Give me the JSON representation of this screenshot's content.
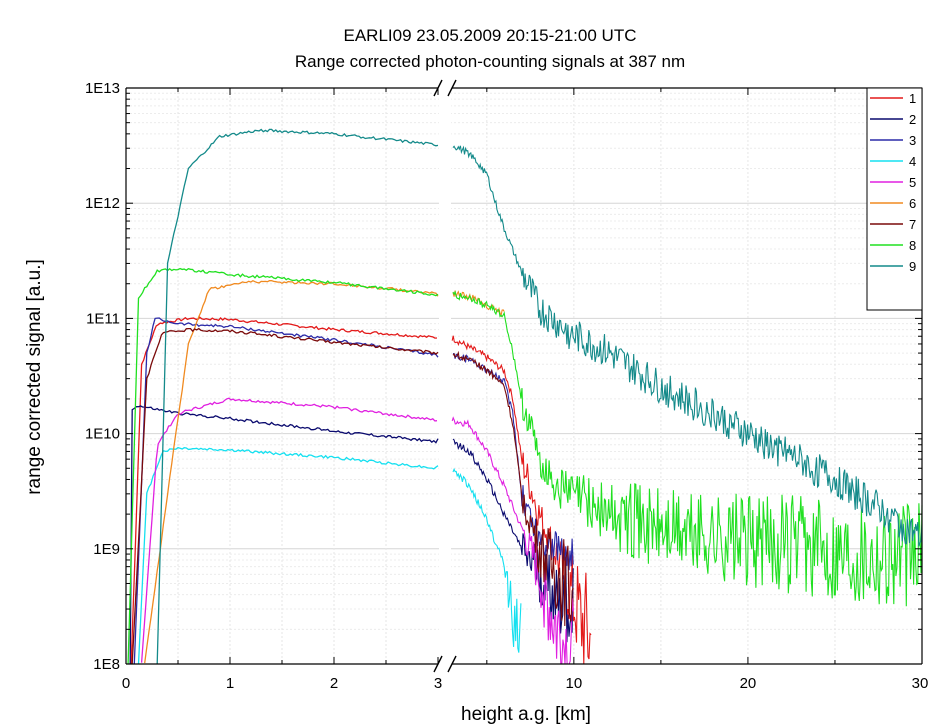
{
  "chart_data": {
    "type": "line",
    "title": "EARLI09 23.05.2009 20:15-21:00 UTC",
    "subtitle": "Range corrected photon-counting signals at 387 nm",
    "xlabel": "height a.g. [km]",
    "ylabel": "range corrected signal [a.u.]",
    "y_scale": "log",
    "ylim": [
      100000000.0,
      10000000000000.0
    ],
    "y_ticks": [
      {
        "value": 100000000.0,
        "label": "1E8"
      },
      {
        "value": 1000000000.0,
        "label": "1E9"
      },
      {
        "value": 10000000000.0,
        "label": "1E10"
      },
      {
        "value": 100000000000.0,
        "label": "1E11"
      },
      {
        "value": 1000000000000.0,
        "label": "1E12"
      },
      {
        "value": 10000000000000.0,
        "label": "1E13"
      }
    ],
    "x_axis_break": {
      "left_segment": [
        0,
        3
      ],
      "right_segment": [
        3,
        30
      ]
    },
    "x_ticks_left": [
      {
        "value": 0,
        "label": "0"
      },
      {
        "value": 1,
        "label": "1"
      },
      {
        "value": 2,
        "label": "2"
      },
      {
        "value": 3,
        "label": "3"
      }
    ],
    "x_ticks_right": [
      {
        "value": 10,
        "label": "10"
      },
      {
        "value": 20,
        "label": "20"
      },
      {
        "value": 30,
        "label": "30"
      }
    ],
    "grid": true,
    "legend_position": "top-right",
    "series": [
      {
        "name": "1",
        "color": "#e31a1a",
        "noise_floor": 120000000.0,
        "points": [
          [
            0.05,
            100000000.0
          ],
          [
            0.15,
            40000000000.0
          ],
          [
            0.3,
            90000000000.0
          ],
          [
            0.6,
            100000000000.0
          ],
          [
            1,
            98000000000.0
          ],
          [
            2,
            80000000000.0
          ],
          [
            3,
            68000000000.0
          ],
          [
            4,
            56000000000.0
          ],
          [
            5,
            46000000000.0
          ],
          [
            6,
            35000000000.0
          ],
          [
            6.5,
            20000000000.0
          ],
          [
            7,
            6000000000.0
          ],
          [
            8,
            2000000000.0
          ],
          [
            9,
            900000000.0
          ],
          [
            10,
            350000000.0
          ],
          [
            11,
            150000000.0
          ]
        ]
      },
      {
        "name": "2",
        "color": "#0a0a6e",
        "noise_floor": 100000000.0,
        "points": [
          [
            0.04,
            100000000.0
          ],
          [
            0.06,
            16000000000.0
          ],
          [
            0.1,
            17500000000.0
          ],
          [
            0.5,
            15000000000.0
          ],
          [
            1,
            13500000000.0
          ],
          [
            2,
            10500000000.0
          ],
          [
            3,
            8500000000.0
          ],
          [
            4,
            7000000000.0
          ],
          [
            5,
            4000000000.0
          ],
          [
            6,
            2000000000.0
          ],
          [
            7,
            1000000000.0
          ],
          [
            8,
            600000000.0
          ],
          [
            9,
            400000000.0
          ],
          [
            10,
            300000000.0
          ]
        ]
      },
      {
        "name": "3",
        "color": "#2b2ba8",
        "noise_floor": 100000000.0,
        "points": [
          [
            0.08,
            100000000.0
          ],
          [
            0.2,
            50000000000.0
          ],
          [
            0.28,
            100000000000.0
          ],
          [
            0.5,
            90000000000.0
          ],
          [
            1,
            85000000000.0
          ],
          [
            2,
            65000000000.0
          ],
          [
            3,
            48000000000.0
          ],
          [
            4,
            44000000000.0
          ],
          [
            5,
            36000000000.0
          ],
          [
            6,
            28000000000.0
          ],
          [
            6.5,
            15000000000.0
          ],
          [
            7,
            3000000000.0
          ],
          [
            8,
            1200000000.0
          ],
          [
            9,
            1000000000.0
          ],
          [
            10,
            900000000.0
          ]
        ]
      },
      {
        "name": "4",
        "color": "#15e0f0",
        "noise_floor": 100000000.0,
        "points": [
          [
            0.12,
            100000000.0
          ],
          [
            0.2,
            3000000000.0
          ],
          [
            0.35,
            7000000000.0
          ],
          [
            0.5,
            7500000000.0
          ],
          [
            1,
            7200000000.0
          ],
          [
            2,
            6200000000.0
          ],
          [
            3,
            5000000000.0
          ],
          [
            4,
            3500000000.0
          ],
          [
            5,
            1800000000.0
          ],
          [
            6,
            700000000.0
          ],
          [
            6.5,
            300000000.0
          ],
          [
            7,
            100000000.0
          ]
        ]
      },
      {
        "name": "5",
        "color": "#e020e0",
        "noise_floor": 100000000.0,
        "points": [
          [
            0.15,
            100000000.0
          ],
          [
            0.3,
            8000000000.0
          ],
          [
            0.5,
            15000000000.0
          ],
          [
            1,
            20000000000.0
          ],
          [
            2,
            17000000000.0
          ],
          [
            3,
            13000000000.0
          ],
          [
            4,
            12000000000.0
          ],
          [
            5,
            7000000000.0
          ],
          [
            6,
            3500000000.0
          ],
          [
            7,
            1500000000.0
          ],
          [
            8,
            600000000.0
          ],
          [
            9,
            200000000.0
          ],
          [
            10,
            100000000.0
          ]
        ]
      },
      {
        "name": "6",
        "color": "#f08a20",
        "noise_floor": 100000000.0,
        "points": [
          [
            0.18,
            100000000.0
          ],
          [
            0.4,
            3000000000.0
          ],
          [
            0.6,
            60000000000.0
          ],
          [
            0.8,
            180000000000.0
          ],
          [
            1.2,
            210000000000.0
          ],
          [
            2,
            200000000000.0
          ],
          [
            3,
            165000000000.0
          ],
          [
            4,
            155000000000.0
          ],
          [
            5,
            130000000000.0
          ],
          [
            6,
            110000000000.0
          ]
        ]
      },
      {
        "name": "7",
        "color": "#7a0a0a",
        "noise_floor": 150000000.0,
        "points": [
          [
            0.06,
            100000000.0
          ],
          [
            0.2,
            30000000000.0
          ],
          [
            0.35,
            75000000000.0
          ],
          [
            0.6,
            80000000000.0
          ],
          [
            1,
            78000000000.0
          ],
          [
            2,
            62000000000.0
          ],
          [
            3,
            50000000000.0
          ],
          [
            4,
            43000000000.0
          ],
          [
            5,
            36000000000.0
          ],
          [
            6,
            26000000000.0
          ],
          [
            6.5,
            12000000000.0
          ],
          [
            7,
            3000000000.0
          ],
          [
            8,
            1000000000.0
          ],
          [
            9,
            600000000.0
          ],
          [
            10,
            400000000.0
          ]
        ]
      },
      {
        "name": "8",
        "color": "#20e020",
        "noise_floor": 400000000.0,
        "points": [
          [
            0.02,
            100000000.0
          ],
          [
            0.12,
            150000000000.0
          ],
          [
            0.3,
            260000000000.0
          ],
          [
            0.5,
            270000000000.0
          ],
          [
            1,
            240000000000.0
          ],
          [
            2,
            205000000000.0
          ],
          [
            3,
            160000000000.0
          ],
          [
            4,
            150000000000.0
          ],
          [
            5,
            130000000000.0
          ],
          [
            6,
            105000000000.0
          ],
          [
            6.5,
            50000000000.0
          ],
          [
            7,
            20000000000.0
          ],
          [
            8,
            6000000000.0
          ],
          [
            9,
            3500000000.0
          ],
          [
            10,
            3000000000.0
          ],
          [
            11,
            2500000000.0
          ],
          [
            12,
            2000000000.0
          ],
          [
            15,
            1500000000.0
          ],
          [
            20,
            1200000000.0
          ],
          [
            25,
            1000000000.0
          ],
          [
            30,
            900000000.0
          ]
        ]
      },
      {
        "name": "9",
        "color": "#148a8a",
        "noise_floor": 100000000.0,
        "points": [
          [
            0.3,
            100000000.0
          ],
          [
            0.4,
            300000000000.0
          ],
          [
            0.6,
            2000000000000.0
          ],
          [
            0.9,
            3800000000000.0
          ],
          [
            1.3,
            4300000000000.0
          ],
          [
            2,
            4000000000000.0
          ],
          [
            3,
            3200000000000.0
          ],
          [
            4,
            2700000000000.0
          ],
          [
            5,
            1800000000000.0
          ],
          [
            5.5,
            1000000000000.0
          ],
          [
            6,
            600000000000.0
          ],
          [
            7,
            250000000000.0
          ],
          [
            8,
            120000000000.0
          ],
          [
            10,
            70000000000.0
          ],
          [
            12,
            50000000000.0
          ],
          [
            15,
            25000000000.0
          ],
          [
            18,
            15000000000.0
          ],
          [
            20,
            10000000000.0
          ],
          [
            25,
            4000000000.0
          ],
          [
            28,
            2000000000.0
          ],
          [
            30,
            1200000000.0
          ]
        ]
      }
    ]
  }
}
